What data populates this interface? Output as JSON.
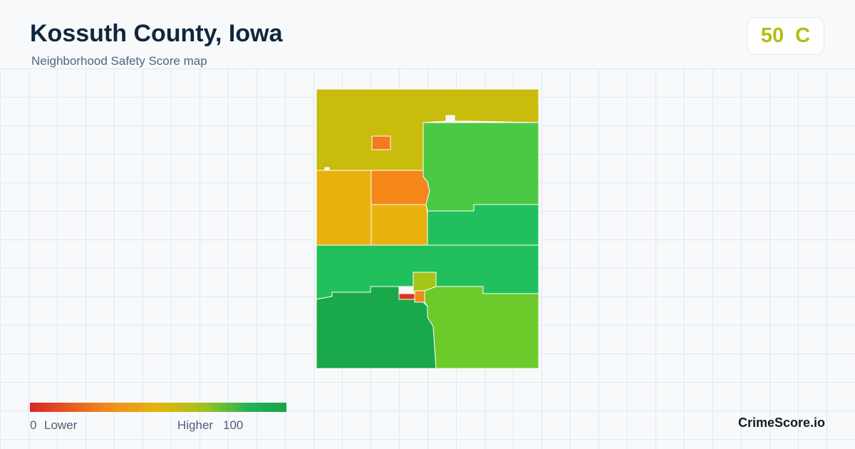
{
  "header": {
    "title": "Kossuth County, Iowa",
    "subtitle": "Neighborhood Safety Score map"
  },
  "score": {
    "value": 50,
    "grade": "C"
  },
  "legend": {
    "min": 0,
    "min_label": "Lower",
    "max_label": "Higher",
    "max": 100
  },
  "brand": "CrimeScore.io"
}
